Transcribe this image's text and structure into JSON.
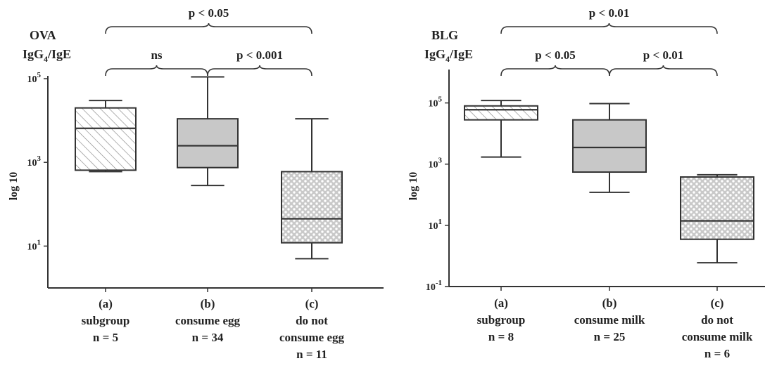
{
  "chart_data": [
    {
      "type": "box",
      "title": "OVA IgG4/IgE",
      "title_lines": [
        "OVA",
        "IgG",
        "/IgE"
      ],
      "title_subscript": "4",
      "ylabel": "log 10",
      "yscale": "log",
      "ylim": [
        1,
        100000
      ],
      "yticks": [
        {
          "value": 100000,
          "base": "10",
          "exp": "5"
        },
        {
          "value": 1000,
          "base": "10",
          "exp": "3"
        },
        {
          "value": 10,
          "base": "10",
          "exp": "1"
        }
      ],
      "categories": [
        {
          "letter": "(a)",
          "lines": [
            "subgroup",
            "n = 5"
          ],
          "pattern": "hatch",
          "min": 600,
          "q1": 650,
          "median": 6500,
          "q3": 20000,
          "max": 30000
        },
        {
          "letter": "(b)",
          "lines": [
            "consume egg",
            "n = 34"
          ],
          "pattern": "gray",
          "min": 280,
          "q1": 750,
          "median": 2500,
          "q3": 11000,
          "max": 110000
        },
        {
          "letter": "(c)",
          "lines": [
            "do not",
            "consume egg",
            "n = 11"
          ],
          "pattern": "dots",
          "min": 5,
          "q1": 12,
          "median": 45,
          "q3": 600,
          "max": 11000
        }
      ],
      "brackets": [
        {
          "from": 0,
          "to": 2,
          "level": 2,
          "label": "p < 0.05"
        },
        {
          "from": 0,
          "to": 1,
          "level": 1,
          "label": "ns"
        },
        {
          "from": 1,
          "to": 2,
          "level": 1,
          "label": "p < 0.001"
        }
      ]
    },
    {
      "type": "box",
      "title": "BLG IgG4/IgE",
      "title_lines": [
        "BLG",
        "IgG",
        "/IgE"
      ],
      "title_subscript": "4",
      "ylabel": "log 10",
      "yscale": "log",
      "ylim": [
        0.1,
        1000000
      ],
      "yticks": [
        {
          "value": 100000,
          "base": "10",
          "exp": "5"
        },
        {
          "value": 1000,
          "base": "10",
          "exp": "3"
        },
        {
          "value": 10,
          "base": "10",
          "exp": "1"
        },
        {
          "value": 0.1,
          "base": "10",
          "exp": "-1"
        }
      ],
      "categories": [
        {
          "letter": "(a)",
          "lines": [
            "subgroup",
            "n = 8"
          ],
          "pattern": "hatch",
          "min": 1700,
          "q1": 28000,
          "median": 60000,
          "q3": 80000,
          "max": 120000
        },
        {
          "letter": "(b)",
          "lines": [
            "consume milk",
            "n = 25"
          ],
          "pattern": "gray",
          "min": 120,
          "q1": 550,
          "median": 3500,
          "q3": 28000,
          "max": 95000
        },
        {
          "letter": "(c)",
          "lines": [
            "do not",
            "consume milk",
            "n = 6"
          ],
          "pattern": "dots",
          "min": 0.6,
          "q1": 3.5,
          "median": 14,
          "q3": 380,
          "max": 450
        }
      ],
      "brackets": [
        {
          "from": 0,
          "to": 2,
          "level": 2,
          "label": "p < 0.01"
        },
        {
          "from": 0,
          "to": 1,
          "level": 1,
          "label": "p < 0.05"
        },
        {
          "from": 1,
          "to": 2,
          "level": 1,
          "label": "p < 0.01"
        }
      ]
    }
  ]
}
